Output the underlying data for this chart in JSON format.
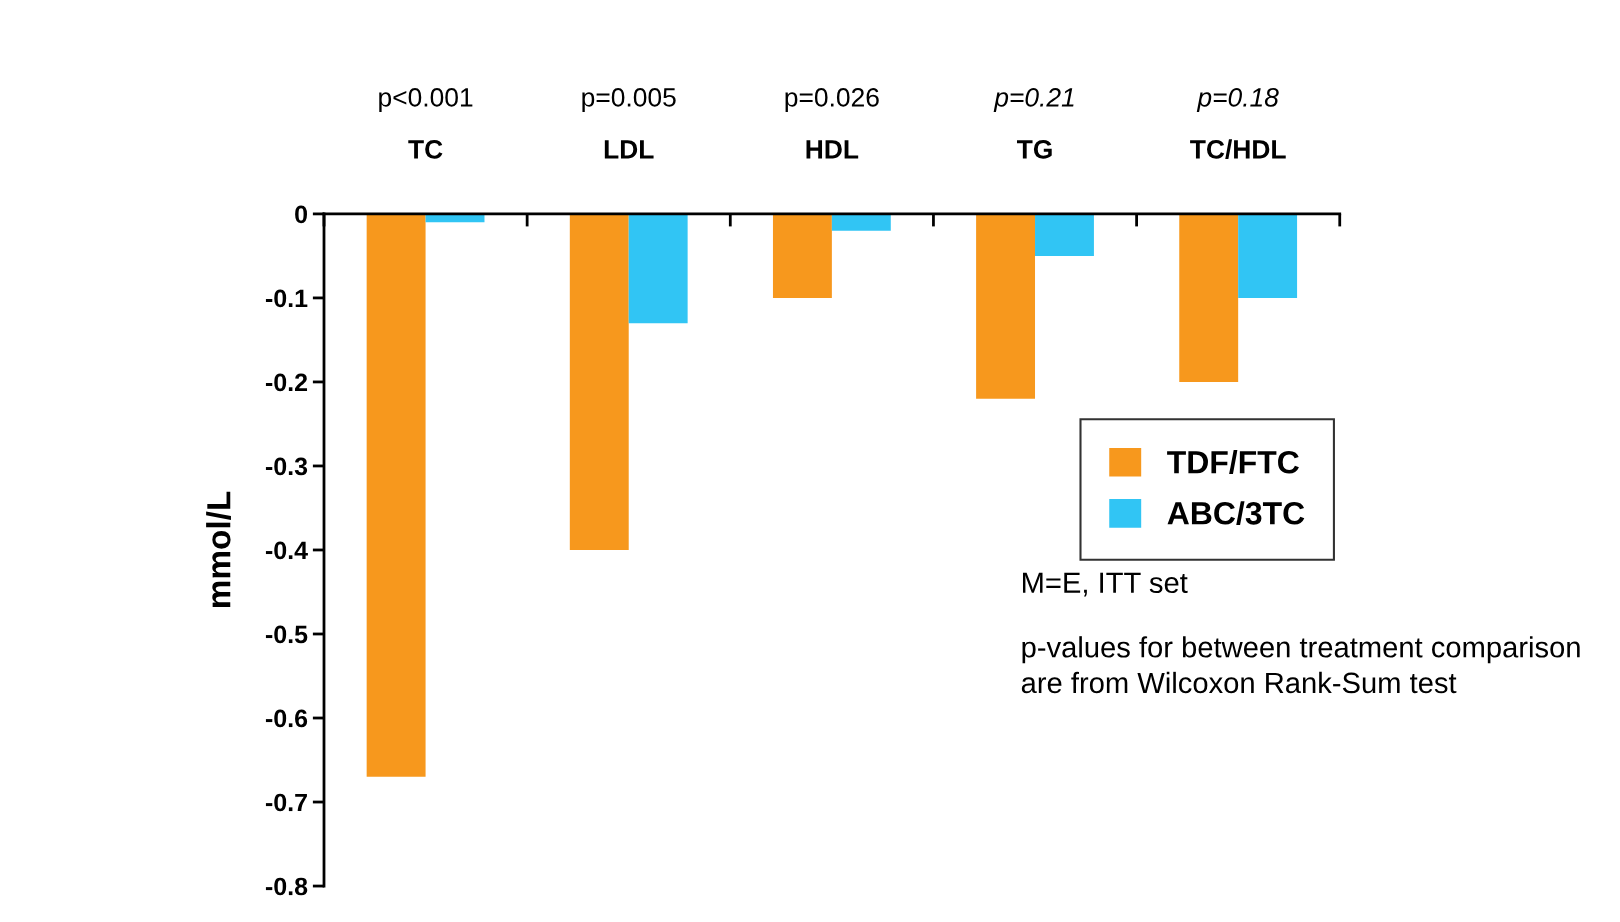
{
  "chart_data": {
    "type": "bar",
    "categories": [
      "TC",
      "LDL",
      "HDL",
      "TG",
      "TC/HDL"
    ],
    "series": [
      {
        "name": "TDF/FTC",
        "color": "#f7981d",
        "values": [
          -0.67,
          -0.4,
          -0.1,
          -0.22,
          -0.2
        ]
      },
      {
        "name": "ABC/3TC",
        "color": "#31c5f4",
        "values": [
          -0.01,
          -0.13,
          -0.02,
          -0.05,
          -0.1
        ]
      }
    ],
    "ylabel": "mmol/L",
    "ylim": [
      -0.8,
      0
    ],
    "yticks": [
      {
        "value": -0.8,
        "label": "-0.8"
      },
      {
        "value": -0.7,
        "label": "-0.7"
      },
      {
        "value": -0.6,
        "label": "-0.6"
      },
      {
        "value": -0.5,
        "label": "-0.5"
      },
      {
        "value": -0.4,
        "label": "-0.4"
      },
      {
        "value": -0.3,
        "label": "-0.3"
      },
      {
        "value": -0.2,
        "label": "-0.2"
      },
      {
        "value": -0.1,
        "label": "-0.1"
      },
      0
    ],
    "legend": "center right",
    "annotations": [
      "p<0.001",
      "p=0.005",
      "p=0.026",
      "p=0.21",
      "p=0.18",
      "M=E, ITT set",
      "p-values for between treatment comparison are from Wilcoxon Rank-Sum test"
    ]
  }
}
